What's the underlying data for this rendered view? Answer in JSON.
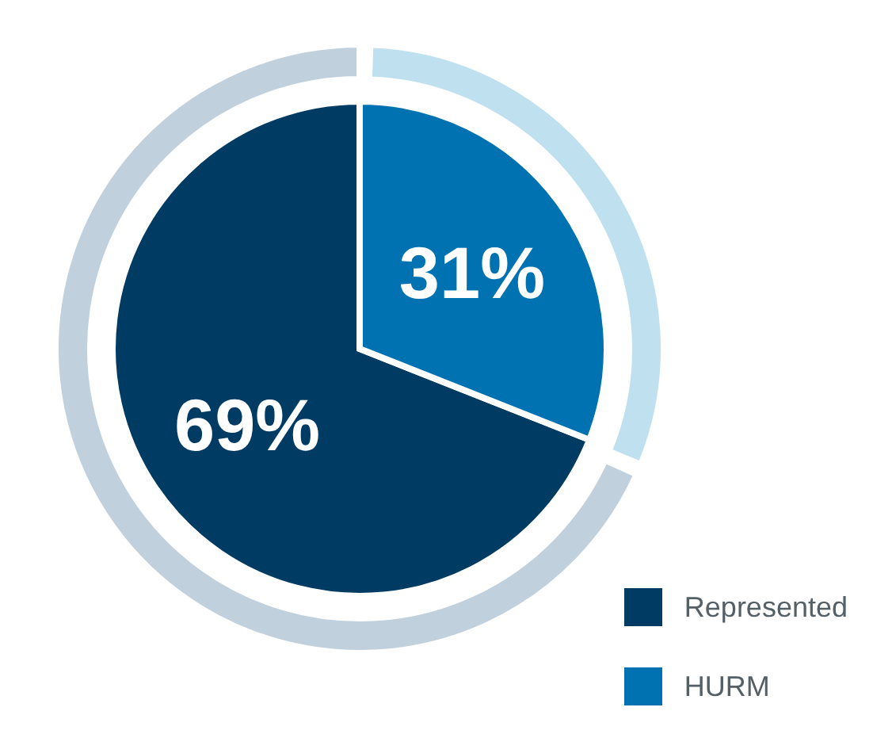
{
  "chart_data": {
    "type": "pie",
    "categories": [
      "Represented",
      "HURM"
    ],
    "values": [
      69,
      31
    ],
    "value_labels": [
      "69%",
      "31%"
    ],
    "colors": [
      "#c0d0dc",
      "#bfe0ef"
    ],
    "series": [
      {
        "values": [
          69,
          31
        ],
        "colors": [
          "#003b64",
          "#0072b2"
        ]
      }
    ],
    "legend": "bottom right"
  }
}
